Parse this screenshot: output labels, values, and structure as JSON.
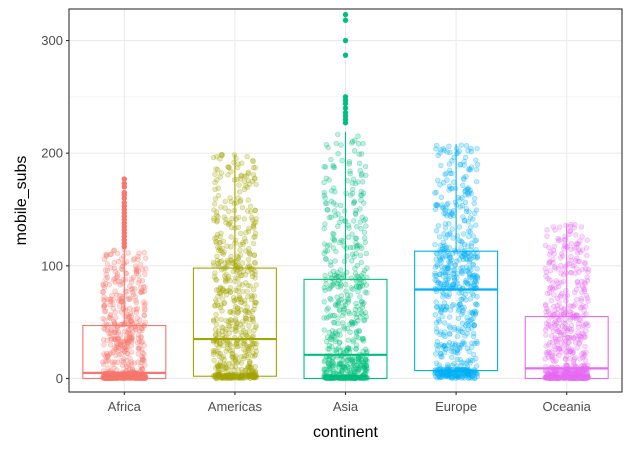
{
  "chart_data": {
    "type": "box",
    "overlay": "jittered points",
    "xlabel": "continent",
    "ylabel": "mobile_subs",
    "ylim": [
      -12,
      328
    ],
    "yticks": [
      0,
      100,
      200,
      300
    ],
    "categories": [
      "Africa",
      "Americas",
      "Asia",
      "Europe",
      "Oceania"
    ],
    "colors": {
      "Africa": "#F8766D",
      "Americas": "#A3A500",
      "Asia": "#00BF7D",
      "Europe": "#00B0F6",
      "Oceania": "#E76BF3"
    },
    "boxes": [
      {
        "category": "Africa",
        "min": 0,
        "q1": 0,
        "median": 5,
        "q3": 47,
        "whisker_high": 115,
        "max": 177,
        "outliers": [
          117,
          120,
          123,
          126,
          129,
          132,
          135,
          138,
          141,
          144,
          147,
          150,
          153,
          156,
          160,
          163,
          165,
          170,
          173,
          177
        ]
      },
      {
        "category": "Americas",
        "min": 0,
        "q1": 2,
        "median": 35,
        "q3": 98,
        "whisker_high": 199,
        "max": 199,
        "outliers": []
      },
      {
        "category": "Asia",
        "min": 0,
        "q1": 0,
        "median": 21,
        "q3": 88,
        "whisker_high": 219,
        "max": 323,
        "outliers": [
          227,
          230,
          233,
          236,
          240,
          244,
          247,
          250,
          287,
          300,
          318,
          323
        ]
      },
      {
        "category": "Europe",
        "min": 0,
        "q1": 7,
        "median": 79,
        "q3": 113,
        "whisker_high": 208,
        "max": 208,
        "outliers": []
      },
      {
        "category": "Oceania",
        "min": 0,
        "q1": 0,
        "median": 9,
        "q3": 55,
        "whisker_high": 137,
        "max": 137,
        "outliers": []
      }
    ],
    "grid": true,
    "legend": "none"
  }
}
